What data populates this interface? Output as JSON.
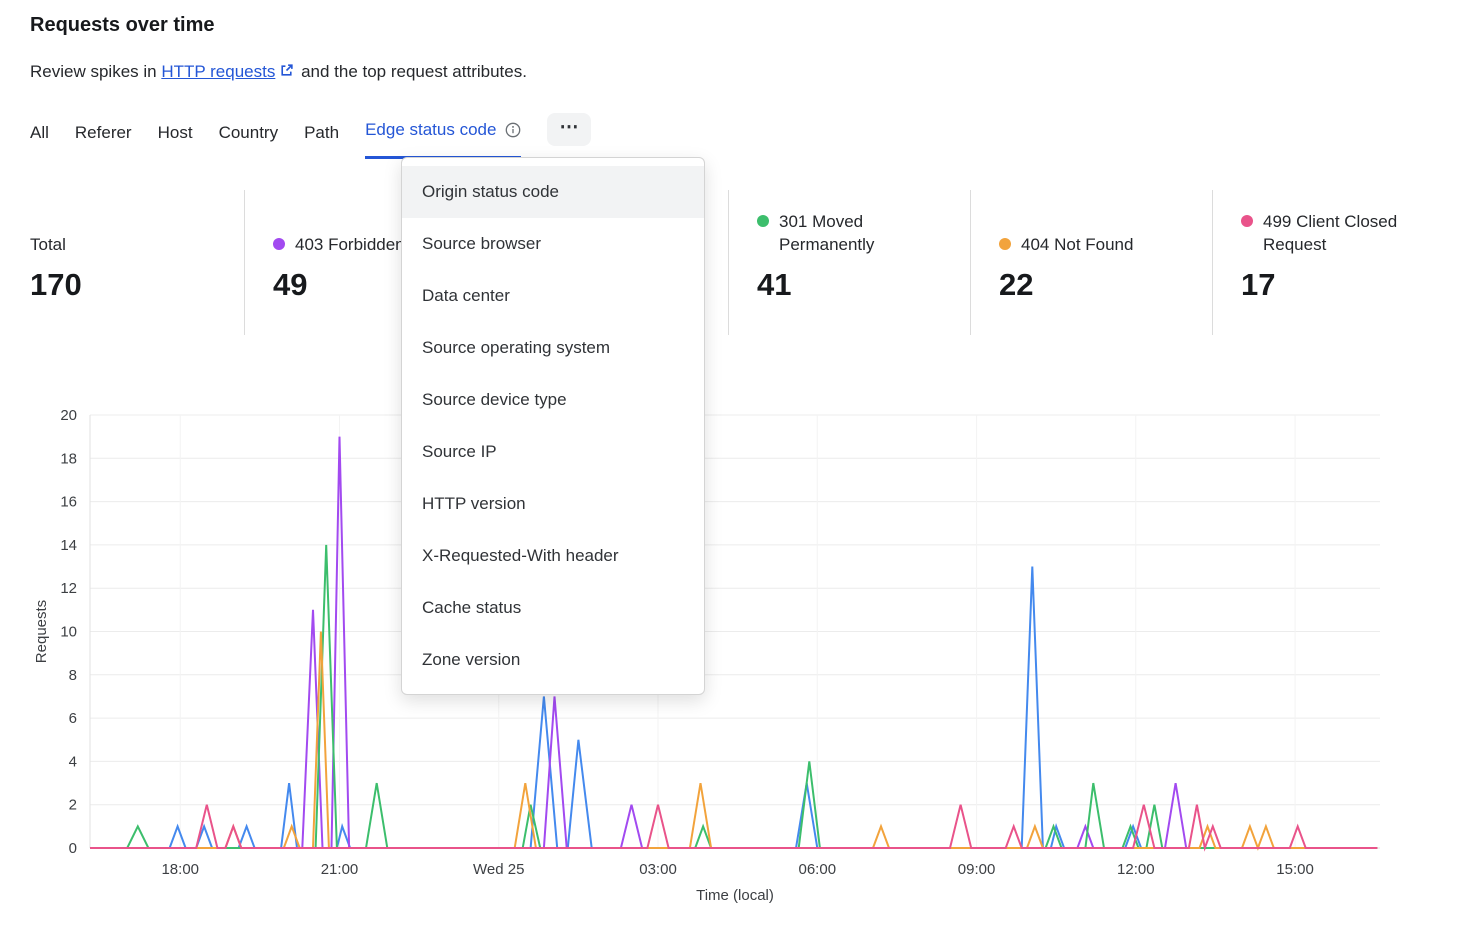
{
  "header": {
    "title": "Requests over time",
    "subtitle_prefix": "Review spikes in ",
    "link_text": "HTTP requests",
    "subtitle_suffix": " and the top request attributes."
  },
  "tabs": {
    "items": [
      {
        "label": "All"
      },
      {
        "label": "Referer"
      },
      {
        "label": "Host"
      },
      {
        "label": "Country"
      },
      {
        "label": "Path"
      },
      {
        "label": "Edge status code",
        "active": true
      }
    ],
    "more_label": "⋯"
  },
  "dropdown": {
    "items": [
      "Origin status code",
      "Source browser",
      "Data center",
      "Source operating system",
      "Source device type",
      "Source IP",
      "HTTP version",
      "X-Requested-With header",
      "Cache status",
      "Zone version"
    ]
  },
  "stats": {
    "total_label": "Total",
    "total_value": "170",
    "items": [
      {
        "label": "403 Forbidden",
        "value": "49",
        "color": "#A24AF0"
      },
      {
        "label": "301 Moved Permanently",
        "value": "41",
        "color": "#3CBE6C"
      },
      {
        "label": "404 Not Found",
        "value": "22",
        "color": "#F2A33C"
      },
      {
        "label": "499 Client Closed Request",
        "value": "17",
        "color": "#E9538A"
      }
    ]
  },
  "chart_data": {
    "type": "line",
    "title": "Requests over time",
    "xlabel": "Time (local)",
    "ylabel": "Requests",
    "x_domain_hours": [
      16.3,
      40.6
    ],
    "ylim": [
      0,
      20
    ],
    "y_tick_step": 2,
    "grid": true,
    "x_ticks": [
      {
        "hour": 18,
        "label": "18:00"
      },
      {
        "hour": 21,
        "label": "21:00"
      },
      {
        "hour": 24,
        "label": "Wed 25"
      },
      {
        "hour": 27,
        "label": "03:00"
      },
      {
        "hour": 30,
        "label": "06:00"
      },
      {
        "hour": 33,
        "label": "09:00"
      },
      {
        "hour": 36,
        "label": "12:00"
      },
      {
        "hour": 39,
        "label": "15:00"
      }
    ],
    "series": [
      {
        "name": "",
        "color": "#4489EE",
        "points": [
          [
            16.3,
            0
          ],
          [
            17.8,
            0
          ],
          [
            17.95,
            1
          ],
          [
            18.1,
            0
          ],
          [
            18.3,
            0
          ],
          [
            18.45,
            1
          ],
          [
            18.6,
            0
          ],
          [
            19.1,
            0
          ],
          [
            19.25,
            1
          ],
          [
            19.4,
            0
          ],
          [
            19.9,
            0
          ],
          [
            20.05,
            3
          ],
          [
            20.2,
            0
          ],
          [
            20.95,
            0
          ],
          [
            21.05,
            1
          ],
          [
            21.2,
            0
          ],
          [
            24.6,
            0
          ],
          [
            24.85,
            7
          ],
          [
            25.1,
            0
          ],
          [
            25.3,
            0
          ],
          [
            25.5,
            5
          ],
          [
            25.75,
            0
          ],
          [
            29.6,
            0
          ],
          [
            29.8,
            3
          ],
          [
            30,
            0
          ],
          [
            33.85,
            0
          ],
          [
            34.05,
            13
          ],
          [
            34.25,
            0
          ],
          [
            34.4,
            0
          ],
          [
            34.5,
            1
          ],
          [
            34.65,
            0
          ],
          [
            35.8,
            0
          ],
          [
            35.95,
            1
          ],
          [
            36.1,
            0
          ],
          [
            40.55,
            0
          ]
        ]
      },
      {
        "name": "403 Forbidden",
        "color": "#A24AF0",
        "points": [
          [
            16.3,
            0
          ],
          [
            20.3,
            0
          ],
          [
            20.5,
            11
          ],
          [
            20.68,
            0
          ],
          [
            20.85,
            0
          ],
          [
            21,
            19
          ],
          [
            21.18,
            0
          ],
          [
            24.85,
            0
          ],
          [
            25.05,
            7
          ],
          [
            25.28,
            0
          ],
          [
            26.3,
            0
          ],
          [
            26.5,
            2
          ],
          [
            26.7,
            0
          ],
          [
            34.9,
            0
          ],
          [
            35.05,
            1
          ],
          [
            35.2,
            0
          ],
          [
            36.55,
            0
          ],
          [
            36.75,
            3
          ],
          [
            36.95,
            0
          ],
          [
            40.55,
            0
          ]
        ]
      },
      {
        "name": "301 Moved Permanently",
        "color": "#3CBE6C",
        "points": [
          [
            16.3,
            0
          ],
          [
            17,
            0
          ],
          [
            17.2,
            1
          ],
          [
            17.4,
            0
          ],
          [
            20.55,
            0
          ],
          [
            20.75,
            14
          ],
          [
            20.95,
            0
          ],
          [
            21.5,
            0
          ],
          [
            21.7,
            3
          ],
          [
            21.9,
            0
          ],
          [
            24.45,
            0
          ],
          [
            24.6,
            2
          ],
          [
            24.78,
            0
          ],
          [
            27.7,
            0
          ],
          [
            27.85,
            1
          ],
          [
            28,
            0
          ],
          [
            29.65,
            0
          ],
          [
            29.85,
            4
          ],
          [
            30.05,
            0
          ],
          [
            34.3,
            0
          ],
          [
            34.45,
            1
          ],
          [
            34.6,
            0
          ],
          [
            35.05,
            0
          ],
          [
            35.2,
            3
          ],
          [
            35.4,
            0
          ],
          [
            35.75,
            0
          ],
          [
            35.9,
            1
          ],
          [
            36.05,
            0
          ],
          [
            36.2,
            0
          ],
          [
            36.35,
            2
          ],
          [
            36.5,
            0
          ],
          [
            40.55,
            0
          ]
        ]
      },
      {
        "name": "404 Not Found",
        "color": "#F2A33C",
        "points": [
          [
            16.3,
            0
          ],
          [
            18.85,
            0
          ],
          [
            19,
            1
          ],
          [
            19.15,
            0
          ],
          [
            19.95,
            0
          ],
          [
            20.1,
            1
          ],
          [
            20.25,
            0
          ],
          [
            20.5,
            0
          ],
          [
            20.65,
            10
          ],
          [
            20.8,
            0
          ],
          [
            24.3,
            0
          ],
          [
            24.5,
            3
          ],
          [
            24.7,
            0
          ],
          [
            27.6,
            0
          ],
          [
            27.8,
            3
          ],
          [
            28,
            0
          ],
          [
            31.05,
            0
          ],
          [
            31.2,
            1
          ],
          [
            31.35,
            0
          ],
          [
            33.95,
            0
          ],
          [
            34.1,
            1
          ],
          [
            34.25,
            0
          ],
          [
            37.2,
            0
          ],
          [
            37.35,
            1
          ],
          [
            37.5,
            0
          ],
          [
            38,
            0
          ],
          [
            38.15,
            1
          ],
          [
            38.3,
            0
          ],
          [
            38.45,
            1
          ],
          [
            38.6,
            0
          ],
          [
            40.55,
            0
          ]
        ]
      },
      {
        "name": "499 Client Closed Request",
        "color": "#E9538A",
        "points": [
          [
            16.3,
            0
          ],
          [
            18.3,
            0
          ],
          [
            18.5,
            2
          ],
          [
            18.7,
            0
          ],
          [
            18.85,
            0
          ],
          [
            19,
            1
          ],
          [
            19.15,
            0
          ],
          [
            26.8,
            0
          ],
          [
            27,
            2
          ],
          [
            27.2,
            0
          ],
          [
            32.5,
            0
          ],
          [
            32.7,
            2
          ],
          [
            32.9,
            0
          ],
          [
            33.55,
            0
          ],
          [
            33.7,
            1
          ],
          [
            33.85,
            0
          ],
          [
            35.95,
            0
          ],
          [
            36.15,
            2
          ],
          [
            36.35,
            0
          ],
          [
            37,
            0
          ],
          [
            37.15,
            2
          ],
          [
            37.3,
            0
          ],
          [
            37.45,
            1
          ],
          [
            37.6,
            0
          ],
          [
            38.9,
            0
          ],
          [
            39.05,
            1
          ],
          [
            39.2,
            0
          ],
          [
            40.55,
            0
          ]
        ]
      }
    ]
  }
}
